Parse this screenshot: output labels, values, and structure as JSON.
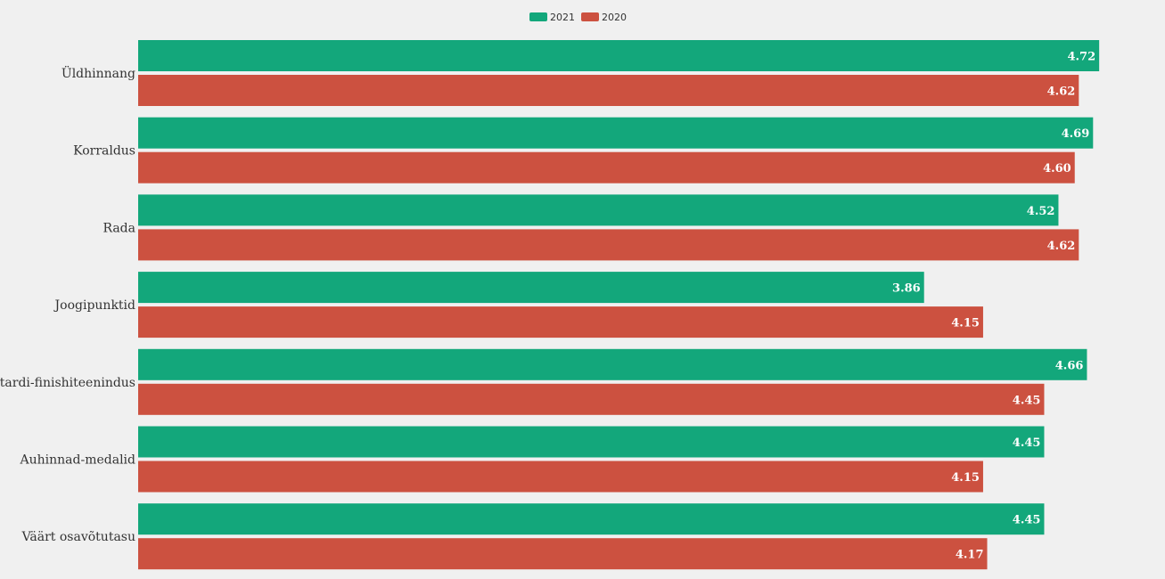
{
  "chart_data": {
    "type": "bar",
    "orientation": "horizontal",
    "categories": [
      "Üldhinnang",
      "Korraldus",
      "Rada",
      "Joogipunktid",
      "Stardi-finishiteenindus",
      "Auhinnad-medalid",
      "Väärt osavõtutasu"
    ],
    "series": [
      {
        "name": "2021",
        "color": "#13a77b",
        "values": [
          4.72,
          4.69,
          4.52,
          3.86,
          4.66,
          4.45,
          4.45
        ],
        "labels": [
          "4.72",
          "4.69",
          "4.52",
          "3.86",
          "4.66",
          "4.45",
          "4.45"
        ]
      },
      {
        "name": "2020",
        "color": "#cc5140",
        "values": [
          4.62,
          4.6,
          4.62,
          4.15,
          4.45,
          4.15,
          4.17
        ],
        "labels": [
          "4.62",
          "4.60",
          "4.62",
          "4.15",
          "4.45",
          "4.15",
          "4.17"
        ]
      }
    ],
    "xlim": [
      0,
      4.75
    ],
    "grid": false,
    "legend_position": "top-center"
  }
}
